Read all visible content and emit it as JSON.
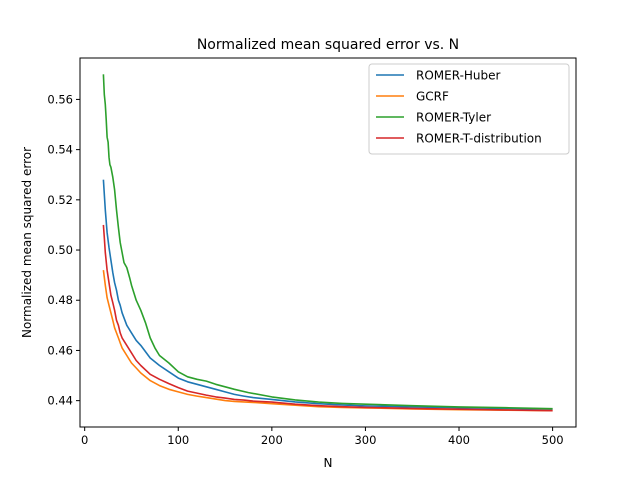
{
  "chart_data": {
    "type": "line",
    "title": "Normalized mean squared error vs. N",
    "xlabel": "N",
    "ylabel": "Normalized mean squared error",
    "xlim": [
      -5,
      525
    ],
    "ylim": [
      0.4295,
      0.5765
    ],
    "xticks": [
      0,
      100,
      200,
      300,
      400,
      500
    ],
    "yticks": [
      0.44,
      0.46,
      0.48,
      0.5,
      0.52,
      0.54,
      0.56
    ],
    "grid": false,
    "legend_position": "top-right",
    "series": [
      {
        "name": "ROMER-Huber",
        "color": "#1f77b4",
        "x": [
          20,
          22,
          24,
          26,
          28,
          30,
          32,
          34,
          36,
          38,
          40,
          45,
          50,
          55,
          60,
          70,
          80,
          90,
          100,
          110,
          120,
          130,
          140,
          150,
          160,
          170,
          180,
          200,
          225,
          250,
          275,
          300,
          350,
          400,
          450,
          500
        ],
        "y": [
          0.528,
          0.516,
          0.507,
          0.501,
          0.496,
          0.491,
          0.487,
          0.484,
          0.48,
          0.478,
          0.475,
          0.47,
          0.467,
          0.464,
          0.462,
          0.457,
          0.454,
          0.4515,
          0.449,
          0.4475,
          0.4465,
          0.4455,
          0.4445,
          0.4435,
          0.4425,
          0.4418,
          0.4412,
          0.4405,
          0.4395,
          0.4388,
          0.4383,
          0.4379,
          0.4375,
          0.4372,
          0.4369,
          0.4366
        ]
      },
      {
        "name": "GCRF",
        "color": "#ff7f0e",
        "x": [
          20,
          22,
          24,
          26,
          28,
          30,
          32,
          34,
          36,
          38,
          40,
          45,
          50,
          55,
          60,
          70,
          80,
          90,
          100,
          110,
          120,
          130,
          140,
          150,
          160,
          170,
          180,
          200,
          225,
          250,
          275,
          300,
          350,
          400,
          450,
          500
        ],
        "y": [
          0.492,
          0.486,
          0.481,
          0.478,
          0.475,
          0.472,
          0.469,
          0.467,
          0.465,
          0.463,
          0.461,
          0.458,
          0.455,
          0.453,
          0.451,
          0.448,
          0.446,
          0.4445,
          0.4435,
          0.4425,
          0.4418,
          0.4412,
          0.4406,
          0.44,
          0.4397,
          0.4395,
          0.4393,
          0.4388,
          0.4382,
          0.4376,
          0.4373,
          0.4371,
          0.4367,
          0.4364,
          0.4362,
          0.436
        ]
      },
      {
        "name": "ROMER-Tyler",
        "color": "#2ca02c",
        "x": [
          20,
          21,
          22,
          23,
          24,
          25,
          26,
          27,
          28,
          30,
          32,
          34,
          36,
          38,
          40,
          42,
          45,
          48,
          50,
          55,
          60,
          65,
          70,
          75,
          80,
          90,
          100,
          110,
          120,
          130,
          140,
          150,
          160,
          175,
          200,
          225,
          250,
          275,
          300,
          350,
          400,
          450,
          500
        ],
        "y": [
          0.57,
          0.562,
          0.558,
          0.552,
          0.545,
          0.543,
          0.537,
          0.534,
          0.533,
          0.529,
          0.524,
          0.516,
          0.509,
          0.503,
          0.499,
          0.495,
          0.493,
          0.489,
          0.486,
          0.48,
          0.476,
          0.471,
          0.465,
          0.461,
          0.458,
          0.455,
          0.4515,
          0.4495,
          0.4485,
          0.4478,
          0.4465,
          0.4455,
          0.4445,
          0.4432,
          0.4415,
          0.4403,
          0.4394,
          0.4389,
          0.4386,
          0.438,
          0.4375,
          0.4372,
          0.4368
        ]
      },
      {
        "name": "ROMER-T-distribution",
        "color": "#d62728",
        "x": [
          20,
          21,
          22,
          24,
          26,
          28,
          30,
          32,
          34,
          36,
          38,
          40,
          45,
          50,
          55,
          60,
          70,
          80,
          90,
          100,
          110,
          120,
          130,
          140,
          150,
          160,
          170,
          180,
          200,
          225,
          250,
          275,
          300,
          350,
          400,
          450,
          500
        ],
        "y": [
          0.51,
          0.505,
          0.499,
          0.492,
          0.487,
          0.482,
          0.479,
          0.476,
          0.472,
          0.47,
          0.467,
          0.465,
          0.462,
          0.459,
          0.456,
          0.454,
          0.4505,
          0.4485,
          0.4468,
          0.4452,
          0.4438,
          0.443,
          0.4422,
          0.4415,
          0.441,
          0.4405,
          0.4402,
          0.4398,
          0.4394,
          0.4386,
          0.438,
          0.4376,
          0.4373,
          0.4369,
          0.4366,
          0.4363,
          0.436
        ]
      }
    ]
  }
}
